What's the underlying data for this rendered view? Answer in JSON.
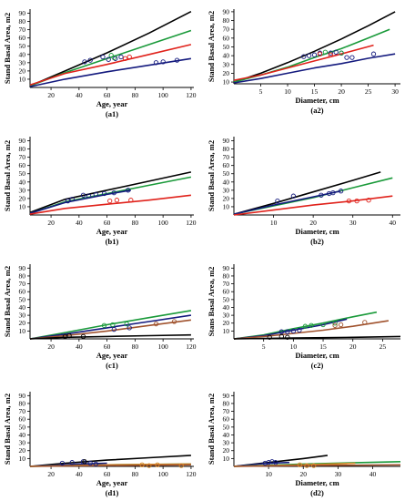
{
  "colors": {
    "black": "#000000",
    "green": "#1a9a3a",
    "red": "#e0221b",
    "navy": "#141a7e",
    "brown": "#a0522d",
    "orange": "#d98a2a"
  },
  "chart_data": [
    {
      "id": "a1",
      "type": "line",
      "panel_label": "(a1)",
      "xlabel": "Age, year",
      "ylabel": "Stand Basal Area, m2",
      "xlim": [
        5,
        122
      ],
      "ylim": [
        0,
        95
      ],
      "xticks": [
        20,
        40,
        60,
        80,
        100,
        120
      ],
      "yticks": [
        10,
        20,
        30,
        40,
        50,
        60,
        70,
        80,
        90
      ],
      "series": [
        {
          "color": "black",
          "x": [
            5,
            30,
            60,
            90,
            120
          ],
          "y": [
            2,
            20,
            42,
            66,
            92
          ]
        },
        {
          "color": "green",
          "x": [
            5,
            30,
            60,
            90,
            120
          ],
          "y": [
            2,
            18,
            35,
            52,
            69
          ]
        },
        {
          "color": "red",
          "x": [
            5,
            30,
            60,
            90,
            120
          ],
          "y": [
            3,
            17,
            28,
            40,
            52
          ]
        },
        {
          "color": "navy",
          "x": [
            5,
            30,
            60,
            90,
            120
          ],
          "y": [
            1,
            10,
            19,
            27,
            35
          ]
        }
      ],
      "points": [
        {
          "color": "navy",
          "x": [
            44,
            48,
            57,
            61,
            66,
            70,
            95,
            100,
            110
          ],
          "y": [
            31,
            33,
            37,
            34,
            35,
            37,
            30,
            31,
            33
          ]
        },
        {
          "color": "green",
          "x": [
            63,
            65
          ],
          "y": [
            39,
            36
          ]
        },
        {
          "color": "red",
          "x": [
            73,
            76
          ],
          "y": [
            35,
            37
          ]
        }
      ]
    },
    {
      "id": "a2",
      "type": "line",
      "panel_label": "(a2)",
      "xlabel": "Diameter, cm",
      "ylabel": "Stand Basal Area, m2",
      "xlim": [
        0,
        31
      ],
      "ylim": [
        8,
        93
      ],
      "xticks": [
        5,
        10,
        15,
        20,
        25,
        30
      ],
      "yticks": [
        10,
        20,
        30,
        40,
        50,
        60,
        70,
        80,
        90
      ],
      "series": [
        {
          "color": "black",
          "x": [
            0,
            5,
            10,
            15,
            20,
            25,
            30
          ],
          "y": [
            10,
            20,
            32,
            45,
            59,
            74,
            90
          ]
        },
        {
          "color": "green",
          "x": [
            0,
            5,
            10,
            15,
            20,
            25,
            29
          ],
          "y": [
            10,
            18,
            27,
            38,
            48,
            60,
            70
          ]
        },
        {
          "color": "red",
          "x": [
            0,
            5,
            10,
            15,
            20,
            26
          ],
          "y": [
            12,
            18,
            26,
            34,
            42,
            52
          ]
        },
        {
          "color": "navy",
          "x": [
            0,
            5,
            10,
            15,
            20,
            25,
            30
          ],
          "y": [
            9,
            14,
            20,
            26,
            31,
            37,
            42
          ]
        }
      ],
      "points": [
        {
          "color": "navy",
          "x": [
            13,
            14,
            15,
            16,
            18,
            19,
            20,
            21,
            22,
            26
          ],
          "y": [
            39,
            40,
            41,
            43,
            43,
            44,
            43,
            38,
            38,
            42
          ]
        },
        {
          "color": "green",
          "x": [
            17,
            20
          ],
          "y": [
            44,
            43
          ]
        },
        {
          "color": "red",
          "x": [
            16,
            18
          ],
          "y": [
            42,
            41
          ]
        }
      ]
    },
    {
      "id": "b1",
      "type": "line",
      "panel_label": "(b1)",
      "xlabel": "Age, year",
      "ylabel": "Stand Basal Area, m2",
      "xlim": [
        5,
        122
      ],
      "ylim": [
        0,
        95
      ],
      "xticks": [
        20,
        40,
        60,
        80,
        100,
        120
      ],
      "yticks": [
        10,
        20,
        30,
        40,
        50,
        60,
        70,
        80,
        90
      ],
      "series": [
        {
          "color": "black",
          "x": [
            5,
            30,
            60,
            90,
            120
          ],
          "y": [
            3,
            19,
            30,
            41,
            52
          ]
        },
        {
          "color": "green",
          "x": [
            5,
            30,
            60,
            90,
            120
          ],
          "y": [
            2,
            16,
            26,
            36,
            46
          ]
        },
        {
          "color": "navy",
          "x": [
            5,
            30,
            60,
            77
          ],
          "y": [
            2,
            15,
            25,
            30
          ]
        },
        {
          "color": "red",
          "x": [
            5,
            30,
            60,
            90,
            120
          ],
          "y": [
            1,
            8,
            13,
            18,
            24
          ]
        }
      ],
      "points": [
        {
          "color": "navy",
          "x": [
            32,
            35,
            43,
            47,
            52,
            58,
            65,
            75
          ],
          "y": [
            17,
            19,
            24,
            23,
            25,
            26,
            27,
            30
          ]
        },
        {
          "color": "red",
          "x": [
            62,
            67,
            77
          ],
          "y": [
            17,
            18,
            18
          ]
        }
      ]
    },
    {
      "id": "b2",
      "type": "line",
      "panel_label": "(b2)",
      "xlabel": "Diameter, cm",
      "ylabel": "Stand Basal Area, m2",
      "xlim": [
        0,
        42
      ],
      "ylim": [
        0,
        95
      ],
      "xticks": [
        10,
        20,
        30,
        40
      ],
      "yticks": [
        10,
        20,
        30,
        40,
        50,
        60,
        70,
        80,
        90
      ],
      "series": [
        {
          "color": "black",
          "x": [
            0,
            10,
            20,
            30,
            37
          ],
          "y": [
            1,
            14,
            28,
            42,
            52
          ]
        },
        {
          "color": "green",
          "x": [
            0,
            10,
            20,
            30,
            40
          ],
          "y": [
            1,
            11,
            21,
            33,
            45
          ]
        },
        {
          "color": "navy",
          "x": [
            0,
            10,
            20,
            27
          ],
          "y": [
            1,
            12,
            22,
            29
          ]
        },
        {
          "color": "red",
          "x": [
            0,
            10,
            20,
            30,
            40
          ],
          "y": [
            0,
            6,
            12,
            17,
            23
          ]
        }
      ],
      "points": [
        {
          "color": "navy",
          "x": [
            11,
            15,
            22,
            24,
            25,
            27
          ],
          "y": [
            17,
            23,
            24,
            26,
            27,
            29
          ]
        },
        {
          "color": "red",
          "x": [
            29,
            31,
            34
          ],
          "y": [
            17,
            17,
            18
          ]
        }
      ]
    },
    {
      "id": "c1",
      "type": "line",
      "panel_label": "(c1)",
      "xlabel": "Age, year",
      "ylabel": "Stand Basal Area, m2",
      "xlim": [
        5,
        122
      ],
      "ylim": [
        0,
        95
      ],
      "xticks": [
        20,
        40,
        60,
        80,
        100,
        120
      ],
      "yticks": [
        10,
        20,
        30,
        40,
        50,
        60,
        70,
        80,
        90
      ],
      "series": [
        {
          "color": "green",
          "x": [
            5,
            30,
            60,
            90,
            120
          ],
          "y": [
            0,
            8,
            18,
            27,
            36
          ]
        },
        {
          "color": "navy",
          "x": [
            5,
            30,
            60,
            90,
            120
          ],
          "y": [
            0,
            6,
            14,
            22,
            30
          ]
        },
        {
          "color": "brown",
          "x": [
            5,
            30,
            60,
            90,
            120
          ],
          "y": [
            0,
            4,
            10,
            17,
            24
          ]
        },
        {
          "color": "black",
          "x": [
            5,
            30,
            60,
            90,
            120
          ],
          "y": [
            0,
            2,
            3,
            4,
            5
          ]
        }
      ],
      "points": [
        {
          "color": "green",
          "x": [
            58,
            64,
            74
          ],
          "y": [
            17,
            18,
            19
          ]
        },
        {
          "color": "navy",
          "x": [
            65,
            76
          ],
          "y": [
            12,
            14
          ]
        },
        {
          "color": "brown",
          "x": [
            95,
            108
          ],
          "y": [
            19,
            22
          ]
        },
        {
          "color": "black",
          "x": [
            30,
            33,
            43
          ],
          "y": [
            3,
            4,
            3
          ]
        }
      ]
    },
    {
      "id": "c2",
      "type": "line",
      "panel_label": "(c2)",
      "xlabel": "Diameter, cm",
      "ylabel": "Stans Basal Area, m2",
      "xlim": [
        0,
        28
      ],
      "ylim": [
        0,
        95
      ],
      "xticks": [
        5,
        10,
        15,
        20,
        25
      ],
      "yticks": [
        10,
        20,
        30,
        40,
        50,
        60,
        70,
        80,
        90
      ],
      "series": [
        {
          "color": "green",
          "x": [
            0,
            5,
            10,
            15,
            20,
            24
          ],
          "y": [
            0,
            5,
            13,
            20,
            28,
            34
          ]
        },
        {
          "color": "navy",
          "x": [
            0,
            5,
            10,
            15,
            19
          ],
          "y": [
            0,
            4,
            11,
            18,
            25
          ]
        },
        {
          "color": "brown",
          "x": [
            0,
            5,
            10,
            15,
            20,
            26
          ],
          "y": [
            0,
            3,
            7,
            11,
            16,
            23
          ]
        },
        {
          "color": "black",
          "x": [
            0,
            10,
            20,
            28
          ],
          "y": [
            0,
            1,
            2,
            3
          ]
        }
      ],
      "points": [
        {
          "color": "green",
          "x": [
            12,
            13,
            15,
            17
          ],
          "y": [
            16,
            17,
            18,
            20
          ]
        },
        {
          "color": "navy",
          "x": [
            8,
            9,
            10,
            11
          ],
          "y": [
            9,
            9,
            10,
            11
          ]
        },
        {
          "color": "brown",
          "x": [
            17,
            18,
            22
          ],
          "y": [
            17,
            18,
            21
          ]
        },
        {
          "color": "black",
          "x": [
            6,
            8,
            9
          ],
          "y": [
            2,
            3,
            2
          ]
        }
      ]
    },
    {
      "id": "d1",
      "type": "line",
      "panel_label": "(d1)",
      "xlabel": "Age, year",
      "ylabel": "Stand Basal Area, m2",
      "xlim": [
        5,
        122
      ],
      "ylim": [
        0,
        95
      ],
      "xticks": [
        20,
        40,
        60,
        80,
        100,
        120
      ],
      "yticks": [
        10,
        20,
        30,
        40,
        50,
        60,
        70,
        80,
        90
      ],
      "series": [
        {
          "color": "black",
          "x": [
            5,
            30,
            60,
            90,
            120
          ],
          "y": [
            0,
            4,
            8,
            11,
            14
          ]
        },
        {
          "color": "navy",
          "x": [
            5,
            40,
            60
          ],
          "y": [
            0,
            3,
            4
          ]
        },
        {
          "color": "green",
          "x": [
            5,
            60,
            120
          ],
          "y": [
            0,
            2,
            3
          ]
        },
        {
          "color": "orange",
          "x": [
            5,
            60,
            120
          ],
          "y": [
            0,
            2,
            3
          ]
        },
        {
          "color": "brown",
          "x": [
            5,
            60,
            120
          ],
          "y": [
            0,
            1,
            2
          ]
        }
      ],
      "points": [
        {
          "color": "navy",
          "x": [
            28,
            35,
            43,
            48,
            52
          ],
          "y": [
            4,
            5,
            6,
            4,
            3
          ]
        },
        {
          "color": "black",
          "x": [
            44
          ],
          "y": [
            6
          ]
        },
        {
          "color": "orange",
          "x": [
            85,
            90,
            96,
            113
          ],
          "y": [
            2,
            1,
            2,
            1
          ]
        }
      ]
    },
    {
      "id": "d2",
      "type": "line",
      "panel_label": "(d2)",
      "xlabel": "Diameter, cm",
      "ylabel": "Stand Basal Area, m2",
      "xlim": [
        0,
        48
      ],
      "ylim": [
        0,
        95
      ],
      "xticks": [
        10,
        20,
        30,
        40
      ],
      "yticks": [
        10,
        20,
        30,
        40,
        50,
        60,
        70,
        80,
        90
      ],
      "series": [
        {
          "color": "black",
          "x": [
            0,
            10,
            20,
            27
          ],
          "y": [
            0,
            5,
            10,
            14
          ]
        },
        {
          "color": "navy",
          "x": [
            0,
            10,
            16
          ],
          "y": [
            0,
            4,
            5
          ]
        },
        {
          "color": "green",
          "x": [
            0,
            20,
            48
          ],
          "y": [
            0,
            3,
            6
          ]
        },
        {
          "color": "orange",
          "x": [
            0,
            20,
            35
          ],
          "y": [
            0,
            2,
            4
          ]
        },
        {
          "color": "brown",
          "x": [
            0,
            20,
            48
          ],
          "y": [
            0,
            1,
            2
          ]
        }
      ],
      "points": [
        {
          "color": "navy",
          "x": [
            9,
            10,
            11,
            12
          ],
          "y": [
            4,
            5,
            6,
            5
          ]
        },
        {
          "color": "orange",
          "x": [
            19,
            21,
            23
          ],
          "y": [
            2,
            1,
            1
          ]
        }
      ]
    }
  ]
}
